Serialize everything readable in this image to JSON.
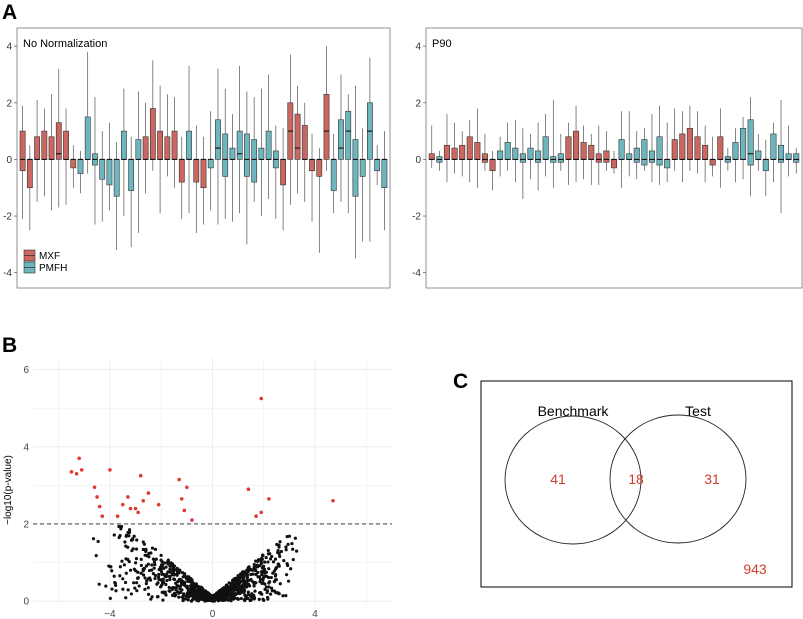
{
  "panel_labels": {
    "a": "A",
    "b": "B",
    "c": "C"
  },
  "colors": {
    "mxf": "#cc6660",
    "pmfh": "#6db6be",
    "sig": "#e03a2e",
    "nonsig": "#111111",
    "venn": "#d23c2e"
  },
  "chart_data": [
    {
      "id": "boxplot_no_norm",
      "type": "box",
      "title": "No Normalization",
      "ylim": [
        -4.4,
        4.5
      ],
      "yticks": [
        -4,
        -2,
        0,
        2,
        4
      ],
      "ytick_labels": [
        "-4",
        "-2",
        "0",
        "2",
        "4"
      ],
      "legend": {
        "placement": "bottom-left",
        "items": [
          "MXF",
          "PMFH"
        ]
      },
      "boxes": [
        {
          "g": "MXF",
          "q1": -0.4,
          "median": 0,
          "q3": 1.0,
          "lo": -2.1,
          "hi": 1.9
        },
        {
          "g": "MXF",
          "q1": -1.0,
          "median": 0,
          "q3": 0,
          "lo": -2.5,
          "hi": 0.5
        },
        {
          "g": "MXF",
          "q1": 0,
          "median": 0,
          "q3": 0.8,
          "lo": -1.5,
          "hi": 2.1
        },
        {
          "g": "MXF",
          "q1": 0,
          "median": 0,
          "q3": 1.0,
          "lo": -1.3,
          "hi": 1.8
        },
        {
          "g": "MXF",
          "q1": 0,
          "median": 0,
          "q3": 0.8,
          "lo": -1.8,
          "hi": 2.3
        },
        {
          "g": "MXF",
          "q1": 0,
          "median": 0.2,
          "q3": 1.3,
          "lo": -1.7,
          "hi": 3.2
        },
        {
          "g": "MXF",
          "q1": 0,
          "median": 0,
          "q3": 1.0,
          "lo": -1.6,
          "hi": 1.8
        },
        {
          "g": "MXF",
          "q1": -0.3,
          "median": 0,
          "q3": 0,
          "lo": -1.0,
          "hi": 0.5
        },
        {
          "g": "PMFH",
          "q1": -0.5,
          "median": 0,
          "q3": 0,
          "lo": -1.2,
          "hi": 0.3
        },
        {
          "g": "PMFH",
          "q1": 0,
          "median": 0,
          "q3": 1.5,
          "lo": -0.5,
          "hi": 3.8
        },
        {
          "g": "PMFH",
          "q1": -0.2,
          "median": 0,
          "q3": 0.2,
          "lo": -2.3,
          "hi": 2.2
        },
        {
          "g": "PMFH",
          "q1": -0.7,
          "median": 0,
          "q3": 0,
          "lo": -2.2,
          "hi": 1.0
        },
        {
          "g": "PMFH",
          "q1": -0.9,
          "median": 0,
          "q3": 0,
          "lo": -1.8,
          "hi": 1.3
        },
        {
          "g": "PMFH",
          "q1": -1.3,
          "median": 0,
          "q3": 0,
          "lo": -3.2,
          "hi": 0.6
        },
        {
          "g": "PMFH",
          "q1": 0,
          "median": 0,
          "q3": 1.0,
          "lo": -2.0,
          "hi": 2.5
        },
        {
          "g": "PMFH",
          "q1": -1.1,
          "median": 0,
          "q3": 0,
          "lo": -3.1,
          "hi": 0.8
        },
        {
          "g": "PMFH",
          "q1": 0,
          "median": 0,
          "q3": 0.7,
          "lo": -2.6,
          "hi": 2.4
        },
        {
          "g": "MXF",
          "q1": 0,
          "median": 0,
          "q3": 0.8,
          "lo": -1.2,
          "hi": 2.0
        },
        {
          "g": "MXF",
          "q1": 0,
          "median": 0,
          "q3": 1.8,
          "lo": -0.4,
          "hi": 3.5
        },
        {
          "g": "MXF",
          "q1": 0,
          "median": 0,
          "q3": 1.0,
          "lo": -1.9,
          "hi": 2.6
        },
        {
          "g": "MXF",
          "q1": 0,
          "median": 0,
          "q3": 0.8,
          "lo": -0.6,
          "hi": 2.3
        },
        {
          "g": "MXF",
          "q1": 0,
          "median": 0,
          "q3": 1.0,
          "lo": -1.0,
          "hi": 2.2
        },
        {
          "g": "MXF",
          "q1": -0.8,
          "median": 0,
          "q3": 0,
          "lo": -2.1,
          "hi": 0.8
        },
        {
          "g": "PMFH",
          "q1": 0,
          "median": 0,
          "q3": 1.0,
          "lo": -1.9,
          "hi": 3.3
        },
        {
          "g": "MXF",
          "q1": -0.8,
          "median": 0,
          "q3": 0,
          "lo": -2.6,
          "hi": 1.2
        },
        {
          "g": "MXF",
          "q1": -1.0,
          "median": 0,
          "q3": 0,
          "lo": -2.3,
          "hi": 0.8
        },
        {
          "g": "PMFH",
          "q1": -0.3,
          "median": 0,
          "q3": 0,
          "lo": -1.8,
          "hi": 1.7
        },
        {
          "g": "PMFH",
          "q1": 0,
          "median": 0.4,
          "q3": 1.4,
          "lo": -2.3,
          "hi": 3.2
        },
        {
          "g": "PMFH",
          "q1": -0.6,
          "median": 0,
          "q3": 0.9,
          "lo": -2.1,
          "hi": 2.5
        },
        {
          "g": "PMFH",
          "q1": 0,
          "median": 0,
          "q3": 0.4,
          "lo": -2.2,
          "hi": 1.6
        },
        {
          "g": "PMFH",
          "q1": 0,
          "median": 0.2,
          "q3": 1.0,
          "lo": -1.9,
          "hi": 3.3
        },
        {
          "g": "PMFH",
          "q1": -0.6,
          "median": 0,
          "q3": 0.9,
          "lo": -3.0,
          "hi": 2.4
        },
        {
          "g": "PMFH",
          "q1": -0.8,
          "median": 0,
          "q3": 0.7,
          "lo": -1.5,
          "hi": 2.2
        },
        {
          "g": "PMFH",
          "q1": 0,
          "median": 0,
          "q3": 0.4,
          "lo": -2.0,
          "hi": 2.5
        },
        {
          "g": "PMFH",
          "q1": 0,
          "median": 0,
          "q3": 1.0,
          "lo": -1.4,
          "hi": 3.0
        },
        {
          "g": "PMFH",
          "q1": -0.3,
          "median": 0,
          "q3": 0.3,
          "lo": -2.1,
          "hi": 1.2
        },
        {
          "g": "MXF",
          "q1": -0.9,
          "median": 0,
          "q3": 0,
          "lo": -2.5,
          "hi": 1.1
        },
        {
          "g": "MXF",
          "q1": 0,
          "median": 1.0,
          "q3": 2.0,
          "lo": -1.6,
          "hi": 3.7
        },
        {
          "g": "MXF",
          "q1": 0,
          "median": 0.4,
          "q3": 1.6,
          "lo": -1.2,
          "hi": 2.6
        },
        {
          "g": "MXF",
          "q1": 0,
          "median": 0,
          "q3": 1.2,
          "lo": -1.5,
          "hi": 2.0
        },
        {
          "g": "MXF",
          "q1": -0.4,
          "median": 0,
          "q3": 0,
          "lo": -2.2,
          "hi": 0.9
        },
        {
          "g": "MXF",
          "q1": -0.6,
          "median": 0,
          "q3": 0,
          "lo": -3.3,
          "hi": 0.4
        },
        {
          "g": "MXF",
          "q1": 0,
          "median": 1.0,
          "q3": 2.3,
          "lo": -0.4,
          "hi": 4.0
        },
        {
          "g": "PMFH",
          "q1": -1.1,
          "median": 0,
          "q3": 0,
          "lo": -1.9,
          "hi": 0.9
        },
        {
          "g": "PMFH",
          "q1": 0,
          "median": 0.4,
          "q3": 1.4,
          "lo": -1.5,
          "hi": 3.0
        },
        {
          "g": "PMFH",
          "q1": 0,
          "median": 1.0,
          "q3": 1.7,
          "lo": -1.9,
          "hi": 2.3
        },
        {
          "g": "PMFH",
          "q1": -1.3,
          "median": 0,
          "q3": 0.7,
          "lo": -3.5,
          "hi": 2.6
        },
        {
          "g": "PMFH",
          "q1": -0.6,
          "median": 0,
          "q3": 0,
          "lo": -2.9,
          "hi": 1.1
        },
        {
          "g": "PMFH",
          "q1": 0,
          "median": 1.0,
          "q3": 2.0,
          "lo": -2.9,
          "hi": 3.6
        },
        {
          "g": "PMFH",
          "q1": -0.4,
          "median": 0,
          "q3": 0,
          "lo": -0.9,
          "hi": 0.5
        },
        {
          "g": "PMFH",
          "q1": -1.0,
          "median": 0,
          "q3": 0,
          "lo": -2.5,
          "hi": 1.0
        }
      ]
    },
    {
      "id": "boxplot_p90",
      "type": "box",
      "title": "P90",
      "ylim": [
        -4.4,
        4.5
      ],
      "yticks": [
        -4,
        -2,
        0,
        2,
        4
      ],
      "ytick_labels": [
        "-4",
        "-2",
        "0",
        "2",
        "4"
      ],
      "boxes": [
        {
          "g": "MXF",
          "q1": 0,
          "median": 0,
          "q3": 0.2,
          "lo": -0.3,
          "hi": 1.2
        },
        {
          "g": "PMFH",
          "q1": -0.1,
          "median": 0,
          "q3": 0.1,
          "lo": -0.4,
          "hi": 0.3
        },
        {
          "g": "MXF",
          "q1": 0,
          "median": 0,
          "q3": 0.5,
          "lo": -0.8,
          "hi": 1.6
        },
        {
          "g": "MXF",
          "q1": 0,
          "median": 0,
          "q3": 0.4,
          "lo": -0.5,
          "hi": 1.3
        },
        {
          "g": "MXF",
          "q1": 0,
          "median": 0,
          "q3": 0.5,
          "lo": -0.6,
          "hi": 1.0
        },
        {
          "g": "MXF",
          "q1": 0,
          "median": 0,
          "q3": 0.8,
          "lo": -0.8,
          "hi": 1.4
        },
        {
          "g": "MXF",
          "q1": 0,
          "median": 0,
          "q3": 0.6,
          "lo": -1.0,
          "hi": 1.8
        },
        {
          "g": "MXF",
          "q1": -0.1,
          "median": 0,
          "q3": 0.2,
          "lo": -0.4,
          "hi": 0.9
        },
        {
          "g": "MXF",
          "q1": -0.4,
          "median": 0,
          "q3": 0,
          "lo": -1.1,
          "hi": 0.3
        },
        {
          "g": "PMFH",
          "q1": 0,
          "median": 0,
          "q3": 0.3,
          "lo": -0.6,
          "hi": 0.8
        },
        {
          "g": "PMFH",
          "q1": 0,
          "median": 0,
          "q3": 0.6,
          "lo": -0.4,
          "hi": 1.3
        },
        {
          "g": "PMFH",
          "q1": 0,
          "median": 0,
          "q3": 0.4,
          "lo": -0.8,
          "hi": 1.4
        },
        {
          "g": "PMFH",
          "q1": -0.1,
          "median": 0,
          "q3": 0.2,
          "lo": -1.4,
          "hi": 1.1
        },
        {
          "g": "PMFH",
          "q1": 0,
          "median": 0,
          "q3": 0.4,
          "lo": -0.7,
          "hi": 0.9
        },
        {
          "g": "PMFH",
          "q1": -0.1,
          "median": 0,
          "q3": 0.3,
          "lo": -1.1,
          "hi": 1.3
        },
        {
          "g": "PMFH",
          "q1": 0,
          "median": 0,
          "q3": 0.8,
          "lo": -0.6,
          "hi": 1.6
        },
        {
          "g": "PMFH",
          "q1": -0.1,
          "median": 0,
          "q3": 0.1,
          "lo": -1.0,
          "hi": 2.1
        },
        {
          "g": "PMFH",
          "q1": -0.1,
          "median": 0,
          "q3": 0.2,
          "lo": -0.4,
          "hi": 0.9
        },
        {
          "g": "MXF",
          "q1": 0,
          "median": 0,
          "q3": 0.8,
          "lo": -0.9,
          "hi": 1.3
        },
        {
          "g": "MXF",
          "q1": 0,
          "median": 0,
          "q3": 1.0,
          "lo": -0.8,
          "hi": 1.9
        },
        {
          "g": "MXF",
          "q1": 0,
          "median": 0,
          "q3": 0.6,
          "lo": -0.7,
          "hi": 1.2
        },
        {
          "g": "MXF",
          "q1": 0,
          "median": 0,
          "q3": 0.5,
          "lo": -0.9,
          "hi": 0.9
        },
        {
          "g": "MXF",
          "q1": -0.1,
          "median": 0,
          "q3": 0.2,
          "lo": -0.9,
          "hi": 1.2
        },
        {
          "g": "MXF",
          "q1": -0.1,
          "median": 0,
          "q3": 0.3,
          "lo": -0.4,
          "hi": 1.0
        },
        {
          "g": "MXF",
          "q1": -0.3,
          "median": 0,
          "q3": 0,
          "lo": -0.5,
          "hi": 0.3
        },
        {
          "g": "PMFH",
          "q1": 0,
          "median": 0,
          "q3": 0.7,
          "lo": -1.0,
          "hi": 1.7
        },
        {
          "g": "PMFH",
          "q1": 0,
          "median": 0,
          "q3": 0.2,
          "lo": -0.6,
          "hi": 1.7
        },
        {
          "g": "PMFH",
          "q1": -0.1,
          "median": 0,
          "q3": 0.4,
          "lo": -0.7,
          "hi": 1.0
        },
        {
          "g": "PMFH",
          "q1": -0.2,
          "median": 0,
          "q3": 0.7,
          "lo": -0.4,
          "hi": 1.1
        },
        {
          "g": "PMFH",
          "q1": -0.1,
          "median": 0,
          "q3": 0.3,
          "lo": -0.8,
          "hi": 1.6
        },
        {
          "g": "PMFH",
          "q1": -0.2,
          "median": 0,
          "q3": 0.8,
          "lo": -0.9,
          "hi": 1.9
        },
        {
          "g": "PMFH",
          "q1": -0.3,
          "median": 0,
          "q3": 0,
          "lo": -0.8,
          "hi": 1.3
        },
        {
          "g": "MXF",
          "q1": 0,
          "median": 0,
          "q3": 0.7,
          "lo": -0.4,
          "hi": 1.8
        },
        {
          "g": "MXF",
          "q1": 0,
          "median": 0,
          "q3": 0.9,
          "lo": -0.8,
          "hi": 1.7
        },
        {
          "g": "MXF",
          "q1": 0,
          "median": 0,
          "q3": 1.1,
          "lo": -0.4,
          "hi": 1.9
        },
        {
          "g": "MXF",
          "q1": 0,
          "median": 0,
          "q3": 0.8,
          "lo": -0.5,
          "hi": 1.7
        },
        {
          "g": "MXF",
          "q1": 0,
          "median": 0,
          "q3": 0.5,
          "lo": -0.8,
          "hi": 1.2
        },
        {
          "g": "MXF",
          "q1": -0.2,
          "median": 0,
          "q3": 0,
          "lo": -0.6,
          "hi": 0.8
        },
        {
          "g": "MXF",
          "q1": 0,
          "median": 0,
          "q3": 0.8,
          "lo": -1.0,
          "hi": 1.8
        },
        {
          "g": "PMFH",
          "q1": -0.1,
          "median": 0,
          "q3": 0.1,
          "lo": -0.4,
          "hi": 0.4
        },
        {
          "g": "PMFH",
          "q1": 0,
          "median": 0,
          "q3": 0.6,
          "lo": -0.8,
          "hi": 1.1
        },
        {
          "g": "PMFH",
          "q1": 0,
          "median": 0,
          "q3": 1.1,
          "lo": -0.7,
          "hi": 1.5
        },
        {
          "g": "PMFH",
          "q1": -0.2,
          "median": 0.2,
          "q3": 1.4,
          "lo": -1.3,
          "hi": 2.2
        },
        {
          "g": "PMFH",
          "q1": 0,
          "median": 0,
          "q3": 0.3,
          "lo": -0.4,
          "hi": 0.9
        },
        {
          "g": "PMFH",
          "q1": -0.4,
          "median": 0,
          "q3": 0,
          "lo": -1.3,
          "hi": 0.7
        },
        {
          "g": "PMFH",
          "q1": 0,
          "median": 0,
          "q3": 0.9,
          "lo": -0.8,
          "hi": 1.3
        },
        {
          "g": "PMFH",
          "q1": -0.1,
          "median": 0,
          "q3": 0.5,
          "lo": -1.9,
          "hi": 2.1
        },
        {
          "g": "PMFH",
          "q1": 0,
          "median": 0,
          "q3": 0.2,
          "lo": -0.6,
          "hi": 1.2
        },
        {
          "g": "PMFH",
          "q1": -0.1,
          "median": 0,
          "q3": 0.2,
          "lo": -0.5,
          "hi": 0.4
        }
      ]
    },
    {
      "id": "volcano",
      "type": "scatter",
      "title": "",
      "xlabel": "",
      "ylabel": "−log10(p-value)",
      "xlim": [
        -7,
        7
      ],
      "ylim": [
        -0.1,
        6.3
      ],
      "xticks": [
        -4,
        0,
        4
      ],
      "xtick_labels": [
        "−4",
        "0",
        "4"
      ],
      "yticks": [
        0,
        2,
        4,
        6
      ],
      "ytick_labels": [
        "0",
        "2",
        "4",
        "6"
      ],
      "threshold_y": 2.0,
      "nonsig_count": 1000,
      "significant_points": [
        [
          -5.5,
          3.35
        ],
        [
          -5.2,
          3.7
        ],
        [
          -5.3,
          3.3
        ],
        [
          -5.1,
          3.4
        ],
        [
          -4.6,
          2.95
        ],
        [
          -4.5,
          2.7
        ],
        [
          -4.4,
          2.45
        ],
        [
          -4.3,
          2.2
        ],
        [
          -4.0,
          3.4
        ],
        [
          -3.7,
          2.2
        ],
        [
          -3.5,
          2.5
        ],
        [
          -3.3,
          2.7
        ],
        [
          -3.2,
          2.4
        ],
        [
          -3.0,
          2.4
        ],
        [
          -2.9,
          2.3
        ],
        [
          -2.8,
          3.25
        ],
        [
          -2.7,
          2.6
        ],
        [
          -2.5,
          2.8
        ],
        [
          -2.1,
          2.5
        ],
        [
          -1.3,
          3.15
        ],
        [
          -1.2,
          2.65
        ],
        [
          -1.1,
          2.35
        ],
        [
          -1.0,
          2.95
        ],
        [
          -0.8,
          2.1
        ],
        [
          1.4,
          2.9
        ],
        [
          1.7,
          2.2
        ],
        [
          1.9,
          2.3
        ],
        [
          1.9,
          5.25
        ],
        [
          2.2,
          2.65
        ],
        [
          4.7,
          2.6
        ]
      ]
    },
    {
      "id": "venn",
      "type": "venn",
      "sets": [
        "Benchmark",
        "Test"
      ],
      "only_benchmark": 41,
      "intersection": 18,
      "only_test": 31,
      "outside": 943
    }
  ]
}
